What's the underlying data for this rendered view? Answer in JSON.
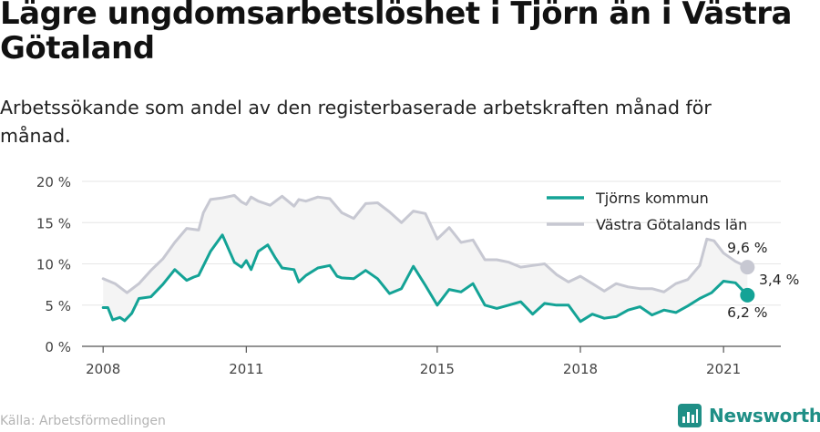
{
  "header": {
    "title": "Lägre ungdomsarbetslöshet i Tjörn än i Västra Götaland",
    "subtitle": "Arbetssökande som andel av den registerbaserade arbetskraften månad för månad."
  },
  "footer": {
    "source": "Källa: Arbetsförmedlingen",
    "brand": "Newsworthy"
  },
  "icons": {
    "brand_logo": "newsworthy-logo-icon"
  },
  "colors": {
    "tjorn": "#14a396",
    "vastra": "#c7c8d2",
    "band": "#f4f4f4",
    "axis": "#555555",
    "brand": "#1f8f86"
  },
  "chart_data": {
    "type": "line",
    "ylim": [
      0,
      20
    ],
    "yticks": [
      0,
      5,
      10,
      15,
      20
    ],
    "ytick_labels": [
      "0 %",
      "5 %",
      "10 %",
      "15 %",
      "20 %"
    ],
    "xlim": [
      2007.5,
      2022.2
    ],
    "xticks": [
      2008,
      2011,
      2015,
      2018,
      2021
    ],
    "xtick_labels": [
      "2008",
      "2011",
      "2015",
      "2018",
      "2021"
    ],
    "legend_position": "top-right",
    "gap_label": "3,4 %",
    "series": [
      {
        "name": "Västra Götalands län",
        "end_label": "9,6 %",
        "points": [
          [
            2008.0,
            8.2
          ],
          [
            2008.25,
            7.6
          ],
          [
            2008.5,
            6.5
          ],
          [
            2008.75,
            7.6
          ],
          [
            2009.0,
            9.2
          ],
          [
            2009.25,
            10.6
          ],
          [
            2009.5,
            12.6
          ],
          [
            2009.75,
            14.3
          ],
          [
            2010.0,
            14.1
          ],
          [
            2010.1,
            16.2
          ],
          [
            2010.25,
            17.8
          ],
          [
            2010.5,
            18.0
          ],
          [
            2010.75,
            18.3
          ],
          [
            2010.9,
            17.5
          ],
          [
            2011.0,
            17.2
          ],
          [
            2011.1,
            18.1
          ],
          [
            2011.25,
            17.6
          ],
          [
            2011.5,
            17.1
          ],
          [
            2011.75,
            18.2
          ],
          [
            2012.0,
            17.0
          ],
          [
            2012.1,
            17.8
          ],
          [
            2012.25,
            17.6
          ],
          [
            2012.5,
            18.1
          ],
          [
            2012.75,
            17.9
          ],
          [
            2013.0,
            16.2
          ],
          [
            2013.25,
            15.5
          ],
          [
            2013.5,
            17.3
          ],
          [
            2013.75,
            17.4
          ],
          [
            2014.0,
            16.3
          ],
          [
            2014.25,
            15.0
          ],
          [
            2014.5,
            16.4
          ],
          [
            2014.75,
            16.1
          ],
          [
            2015.0,
            13.0
          ],
          [
            2015.25,
            14.4
          ],
          [
            2015.5,
            12.6
          ],
          [
            2015.75,
            12.9
          ],
          [
            2016.0,
            10.5
          ],
          [
            2016.25,
            10.5
          ],
          [
            2016.5,
            10.2
          ],
          [
            2016.75,
            9.6
          ],
          [
            2017.0,
            9.8
          ],
          [
            2017.25,
            10.0
          ],
          [
            2017.5,
            8.7
          ],
          [
            2017.75,
            7.8
          ],
          [
            2018.0,
            8.5
          ],
          [
            2018.25,
            7.6
          ],
          [
            2018.5,
            6.7
          ],
          [
            2018.75,
            7.6
          ],
          [
            2019.0,
            7.2
          ],
          [
            2019.25,
            7.0
          ],
          [
            2019.5,
            7.0
          ],
          [
            2019.75,
            6.6
          ],
          [
            2020.0,
            7.6
          ],
          [
            2020.25,
            8.1
          ],
          [
            2020.5,
            9.8
          ],
          [
            2020.65,
            13.0
          ],
          [
            2020.8,
            12.8
          ],
          [
            2021.0,
            11.3
          ],
          [
            2021.25,
            10.3
          ],
          [
            2021.5,
            9.6
          ]
        ]
      },
      {
        "name": "Tjörns kommun",
        "end_label": "6,2 %",
        "points": [
          [
            2008.0,
            4.7
          ],
          [
            2008.1,
            4.7
          ],
          [
            2008.2,
            3.2
          ],
          [
            2008.35,
            3.5
          ],
          [
            2008.45,
            3.1
          ],
          [
            2008.6,
            4.0
          ],
          [
            2008.75,
            5.8
          ],
          [
            2009.0,
            6.0
          ],
          [
            2009.25,
            7.5
          ],
          [
            2009.5,
            9.3
          ],
          [
            2009.75,
            8.0
          ],
          [
            2009.9,
            8.4
          ],
          [
            2010.0,
            8.6
          ],
          [
            2010.25,
            11.5
          ],
          [
            2010.5,
            13.5
          ],
          [
            2010.75,
            10.2
          ],
          [
            2010.9,
            9.6
          ],
          [
            2011.0,
            10.4
          ],
          [
            2011.1,
            9.3
          ],
          [
            2011.25,
            11.5
          ],
          [
            2011.45,
            12.3
          ],
          [
            2011.6,
            10.8
          ],
          [
            2011.75,
            9.5
          ],
          [
            2012.0,
            9.3
          ],
          [
            2012.1,
            7.8
          ],
          [
            2012.25,
            8.6
          ],
          [
            2012.5,
            9.5
          ],
          [
            2012.75,
            9.8
          ],
          [
            2012.9,
            8.5
          ],
          [
            2013.0,
            8.3
          ],
          [
            2013.25,
            8.2
          ],
          [
            2013.5,
            9.2
          ],
          [
            2013.75,
            8.2
          ],
          [
            2014.0,
            6.4
          ],
          [
            2014.25,
            7.0
          ],
          [
            2014.5,
            9.7
          ],
          [
            2014.75,
            7.4
          ],
          [
            2015.0,
            5.0
          ],
          [
            2015.25,
            6.9
          ],
          [
            2015.5,
            6.6
          ],
          [
            2015.75,
            7.6
          ],
          [
            2016.0,
            5.0
          ],
          [
            2016.25,
            4.6
          ],
          [
            2016.5,
            5.0
          ],
          [
            2016.75,
            5.4
          ],
          [
            2017.0,
            3.9
          ],
          [
            2017.25,
            5.2
          ],
          [
            2017.5,
            5.0
          ],
          [
            2017.75,
            5.0
          ],
          [
            2018.0,
            3.0
          ],
          [
            2018.25,
            3.9
          ],
          [
            2018.5,
            3.4
          ],
          [
            2018.75,
            3.6
          ],
          [
            2019.0,
            4.4
          ],
          [
            2019.25,
            4.8
          ],
          [
            2019.5,
            3.8
          ],
          [
            2019.75,
            4.4
          ],
          [
            2020.0,
            4.1
          ],
          [
            2020.25,
            4.9
          ],
          [
            2020.5,
            5.8
          ],
          [
            2020.75,
            6.5
          ],
          [
            2021.0,
            7.9
          ],
          [
            2021.25,
            7.7
          ],
          [
            2021.5,
            6.2
          ]
        ]
      }
    ]
  }
}
